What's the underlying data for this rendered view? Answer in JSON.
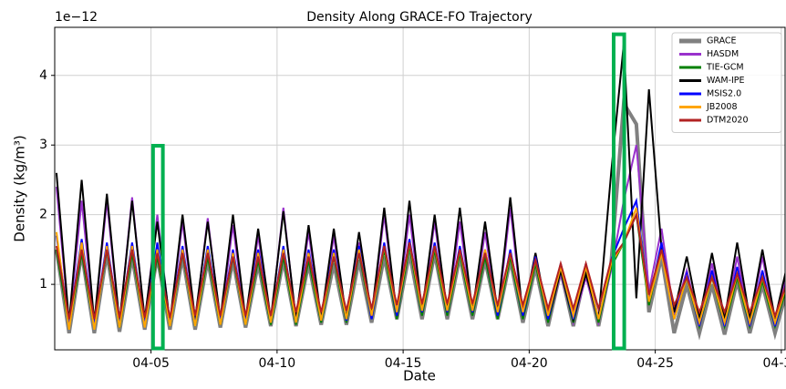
{
  "chart_data": {
    "type": "line",
    "title": "Density Along GRACE-FO Trajectory",
    "xlabel": "Date",
    "ylabel": "Density (kg/m³)",
    "y_offset_label": "1e−12",
    "xlim": [
      1.18,
      30.15
    ],
    "ylim": [
      0.06,
      4.69
    ],
    "xticks": [
      {
        "value": 5,
        "label": "04-05"
      },
      {
        "value": 10,
        "label": "04-10"
      },
      {
        "value": 15,
        "label": "04-15"
      },
      {
        "value": 20,
        "label": "04-20"
      },
      {
        "value": 25,
        "label": "04-25"
      },
      {
        "value": 30,
        "label": "04-30"
      }
    ],
    "yticks": [
      1,
      2,
      3,
      4
    ],
    "grid": true,
    "legend": "upper right",
    "x": [
      1.25,
      1.75,
      2.25,
      2.75,
      3.25,
      3.75,
      4.25,
      4.75,
      5.25,
      5.75,
      6.25,
      6.75,
      7.25,
      7.75,
      8.25,
      8.75,
      9.25,
      9.75,
      10.25,
      10.75,
      11.25,
      11.75,
      12.25,
      12.75,
      13.25,
      13.75,
      14.25,
      14.75,
      15.25,
      15.75,
      16.25,
      16.75,
      17.25,
      17.75,
      18.25,
      18.75,
      19.25,
      19.75,
      20.25,
      20.75,
      21.25,
      21.75,
      22.25,
      22.75,
      23.25,
      23.75,
      24.25,
      24.75,
      25.25,
      25.75,
      26.25,
      26.75,
      27.25,
      27.75,
      28.25,
      28.75,
      29.25,
      29.75,
      30.25
    ],
    "series": [
      {
        "name": "GRACE",
        "color": "#808080",
        "width": 4,
        "values": [
          1.5,
          0.3,
          1.45,
          0.3,
          1.45,
          0.32,
          1.4,
          0.35,
          1.4,
          0.35,
          1.4,
          0.35,
          1.35,
          0.38,
          1.35,
          0.38,
          1.3,
          0.4,
          1.35,
          0.4,
          1.3,
          0.42,
          1.3,
          0.42,
          1.35,
          0.45,
          1.4,
          0.5,
          1.45,
          0.5,
          1.45,
          0.5,
          1.4,
          0.5,
          1.35,
          0.5,
          1.35,
          0.45,
          1.25,
          0.4,
          1.2,
          0.4,
          1.2,
          0.4,
          1.3,
          3.6,
          3.3,
          0.6,
          1.4,
          0.3,
          1.0,
          0.3,
          1.0,
          0.28,
          1.05,
          0.3,
          1.0,
          0.3,
          0.95
        ]
      },
      {
        "name": "HASDM",
        "color": "#9932cc",
        "width": 2,
        "values": [
          2.4,
          0.42,
          2.2,
          0.42,
          2.2,
          0.42,
          2.25,
          0.45,
          2.0,
          0.42,
          1.9,
          0.45,
          1.95,
          0.45,
          1.85,
          0.45,
          1.7,
          0.45,
          2.1,
          0.45,
          1.75,
          0.45,
          1.7,
          0.45,
          1.6,
          0.5,
          2.0,
          0.5,
          2.0,
          0.55,
          1.9,
          0.55,
          1.9,
          0.55,
          1.75,
          0.55,
          2.1,
          0.5,
          1.3,
          0.45,
          1.15,
          0.45,
          1.1,
          0.45,
          1.2,
          2.2,
          3.0,
          0.9,
          1.8,
          0.55,
          1.2,
          0.45,
          1.3,
          0.45,
          1.4,
          0.45,
          1.4,
          0.45,
          1.2
        ]
      },
      {
        "name": "TIE-GCM",
        "color": "#008000",
        "width": 2,
        "values": [
          1.5,
          0.38,
          1.45,
          0.38,
          1.5,
          0.38,
          1.45,
          0.4,
          1.4,
          0.4,
          1.45,
          0.4,
          1.4,
          0.42,
          1.4,
          0.42,
          1.35,
          0.42,
          1.4,
          0.42,
          1.35,
          0.45,
          1.4,
          0.45,
          1.45,
          0.5,
          1.5,
          0.5,
          1.55,
          0.55,
          1.5,
          0.55,
          1.45,
          0.55,
          1.4,
          0.5,
          1.4,
          0.5,
          1.3,
          0.45,
          1.2,
          0.45,
          1.2,
          0.45,
          1.25,
          1.6,
          2.0,
          0.7,
          1.5,
          0.5,
          1.1,
          0.4,
          1.1,
          0.4,
          1.1,
          0.4,
          1.05,
          0.4,
          1.0
        ]
      },
      {
        "name": "WAM-IPE",
        "color": "#000000",
        "width": 2,
        "values": [
          2.6,
          0.45,
          2.5,
          0.45,
          2.3,
          0.45,
          2.2,
          0.5,
          1.9,
          0.45,
          2.0,
          0.5,
          1.9,
          0.5,
          2.0,
          0.5,
          1.8,
          0.5,
          2.05,
          0.5,
          1.85,
          0.5,
          1.8,
          0.5,
          1.75,
          0.55,
          2.1,
          0.55,
          2.2,
          0.6,
          2.0,
          0.6,
          2.1,
          0.6,
          1.9,
          0.6,
          2.25,
          0.55,
          1.45,
          0.5,
          1.2,
          0.5,
          1.15,
          0.5,
          2.6,
          4.45,
          0.8,
          3.8,
          1.5,
          0.6,
          1.4,
          0.5,
          1.45,
          0.5,
          1.6,
          0.5,
          1.5,
          0.5,
          1.3
        ]
      },
      {
        "name": "MSIS2.0",
        "color": "#0000ff",
        "width": 2,
        "values": [
          1.7,
          0.4,
          1.65,
          0.4,
          1.6,
          0.4,
          1.6,
          0.42,
          1.6,
          0.42,
          1.55,
          0.42,
          1.55,
          0.45,
          1.5,
          0.45,
          1.5,
          0.45,
          1.55,
          0.45,
          1.5,
          0.48,
          1.5,
          0.48,
          1.55,
          0.5,
          1.6,
          0.55,
          1.65,
          0.6,
          1.6,
          0.6,
          1.55,
          0.6,
          1.5,
          0.55,
          1.5,
          0.55,
          1.4,
          0.5,
          1.3,
          0.5,
          1.3,
          0.5,
          1.35,
          1.8,
          2.2,
          0.75,
          1.6,
          0.5,
          1.15,
          0.4,
          1.2,
          0.4,
          1.25,
          0.4,
          1.2,
          0.4,
          1.1
        ]
      },
      {
        "name": "JB2008",
        "color": "#ffa500",
        "width": 2,
        "values": [
          1.75,
          0.35,
          1.6,
          0.35,
          1.55,
          0.38,
          1.55,
          0.38,
          1.5,
          0.4,
          1.5,
          0.4,
          1.5,
          0.42,
          1.45,
          0.42,
          1.45,
          0.45,
          1.5,
          0.45,
          1.45,
          0.48,
          1.45,
          0.5,
          1.5,
          0.55,
          1.55,
          0.6,
          1.6,
          0.62,
          1.55,
          0.62,
          1.5,
          0.62,
          1.5,
          0.6,
          1.45,
          0.6,
          1.35,
          0.55,
          1.25,
          0.55,
          1.25,
          0.5,
          1.3,
          1.6,
          2.1,
          0.75,
          1.45,
          0.5,
          1.1,
          0.45,
          1.1,
          0.45,
          1.15,
          0.45,
          1.1,
          0.45,
          1.05
        ]
      },
      {
        "name": "DTM2020",
        "color": "#b22222",
        "width": 2,
        "values": [
          1.55,
          0.5,
          1.5,
          0.5,
          1.5,
          0.52,
          1.5,
          0.52,
          1.45,
          0.52,
          1.45,
          0.55,
          1.45,
          0.55,
          1.4,
          0.55,
          1.4,
          0.55,
          1.45,
          0.6,
          1.4,
          0.6,
          1.4,
          0.62,
          1.45,
          0.65,
          1.55,
          0.7,
          1.6,
          0.72,
          1.55,
          0.72,
          1.5,
          0.72,
          1.45,
          0.7,
          1.45,
          0.7,
          1.35,
          0.65,
          1.3,
          0.65,
          1.3,
          0.65,
          1.35,
          1.6,
          2.0,
          0.85,
          1.5,
          0.7,
          1.1,
          0.6,
          1.1,
          0.6,
          1.15,
          0.6,
          1.1,
          0.55,
          1.05
        ]
      }
    ],
    "highlights": [
      {
        "color": "#00b050",
        "x": [
          5.08,
          5.47
        ],
        "y": [
          0.08,
          2.99
        ]
      },
      {
        "color": "#00b050",
        "x": [
          23.35,
          23.77
        ],
        "y": [
          0.08,
          4.59
        ]
      }
    ]
  }
}
